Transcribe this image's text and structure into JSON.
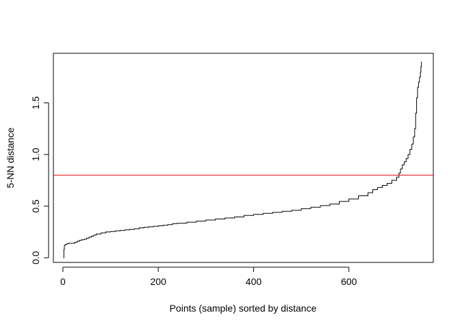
{
  "chart_data": {
    "type": "line",
    "title": "",
    "xlabel": "Points (sample) sorted by distance",
    "ylabel": "5-NN distance",
    "xlim": [
      -20,
      777
    ],
    "ylim": [
      -0.045,
      1.98
    ],
    "x_ticks": [
      {
        "value": 0,
        "label": "0"
      },
      {
        "value": 200,
        "label": "200"
      },
      {
        "value": 400,
        "label": "400"
      },
      {
        "value": 600,
        "label": "600"
      }
    ],
    "y_ticks": [
      {
        "value": 0.0,
        "label": "0.0"
      },
      {
        "value": 0.5,
        "label": "0.5"
      },
      {
        "value": 1.0,
        "label": "1.0"
      },
      {
        "value": 1.5,
        "label": "1.5"
      }
    ],
    "grid": false,
    "legend": "none",
    "series": [
      {
        "color": "#000000",
        "style": "step",
        "x": [
          1,
          2,
          3,
          5,
          8,
          12,
          20,
          25,
          30,
          35,
          40,
          45,
          50,
          55,
          60,
          65,
          70,
          80,
          90,
          100,
          110,
          120,
          130,
          140,
          150,
          160,
          170,
          180,
          190,
          200,
          210,
          220,
          230,
          240,
          260,
          280,
          300,
          320,
          340,
          360,
          380,
          400,
          420,
          440,
          460,
          480,
          500,
          520,
          540,
          560,
          580,
          600,
          620,
          640,
          650,
          660,
          670,
          680,
          690,
          700,
          705,
          708,
          712,
          716,
          720,
          724,
          728,
          732,
          735,
          738,
          740,
          742,
          744,
          746,
          748,
          750,
          751,
          752
        ],
        "y": [
          0.0,
          0.08,
          0.12,
          0.13,
          0.135,
          0.14,
          0.14,
          0.15,
          0.16,
          0.17,
          0.175,
          0.18,
          0.19,
          0.2,
          0.21,
          0.22,
          0.23,
          0.24,
          0.25,
          0.255,
          0.26,
          0.265,
          0.27,
          0.275,
          0.28,
          0.29,
          0.295,
          0.3,
          0.305,
          0.31,
          0.315,
          0.32,
          0.33,
          0.335,
          0.345,
          0.355,
          0.365,
          0.375,
          0.385,
          0.395,
          0.41,
          0.42,
          0.43,
          0.44,
          0.45,
          0.46,
          0.475,
          0.49,
          0.505,
          0.52,
          0.545,
          0.57,
          0.6,
          0.63,
          0.66,
          0.68,
          0.7,
          0.72,
          0.75,
          0.78,
          0.82,
          0.86,
          0.9,
          0.93,
          0.96,
          1.0,
          1.05,
          1.1,
          1.17,
          1.25,
          1.4,
          1.55,
          1.65,
          1.7,
          1.75,
          1.8,
          1.85,
          1.9
        ]
      }
    ],
    "hline": {
      "y": 0.8,
      "color": "#e00000"
    }
  }
}
